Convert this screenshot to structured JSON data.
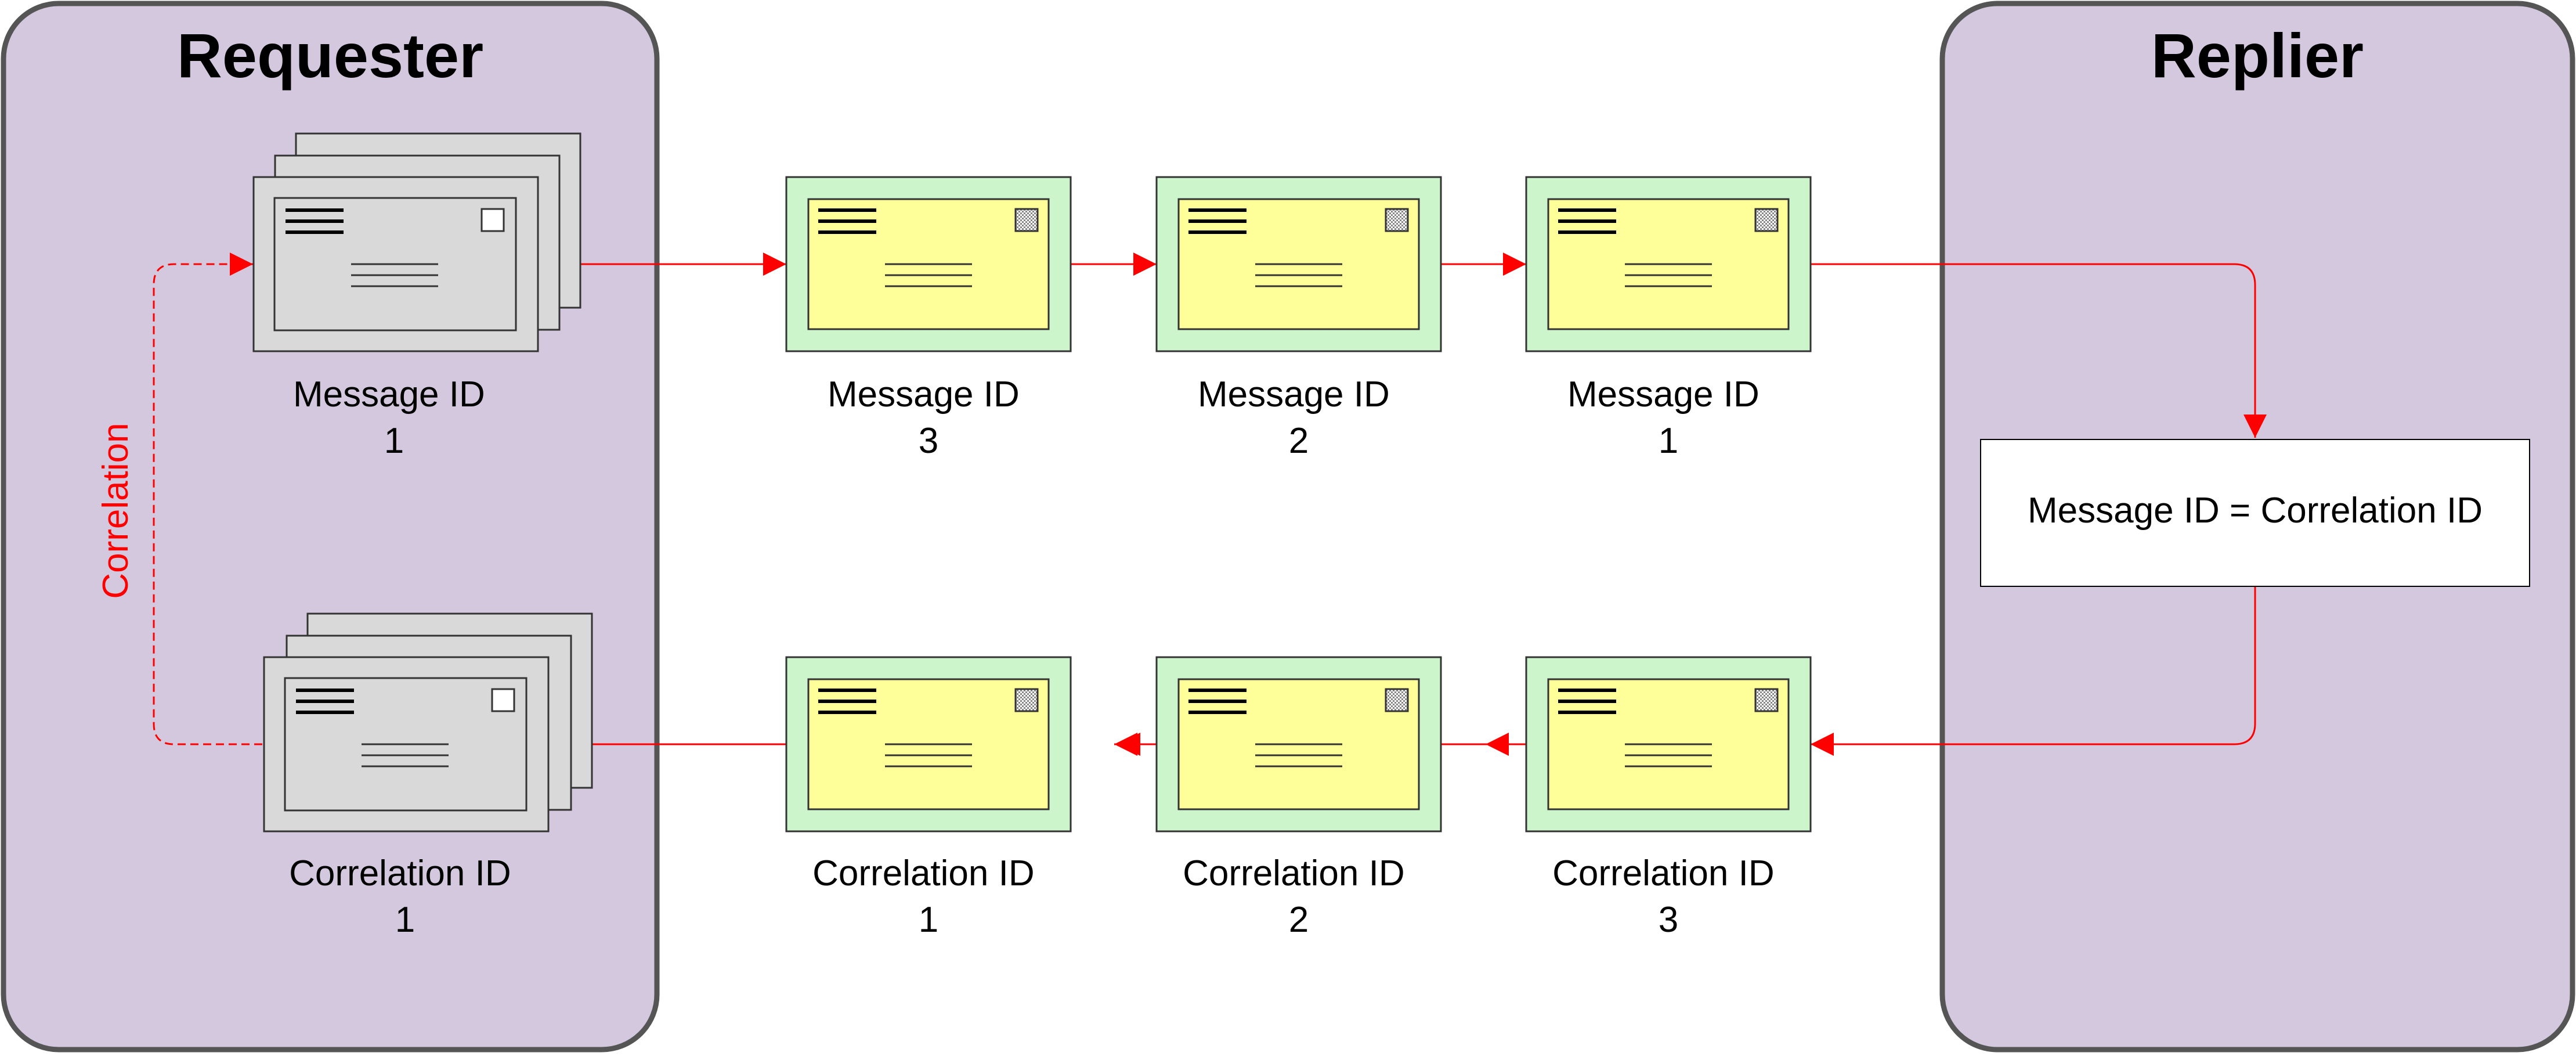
{
  "requester": {
    "title": "Requester"
  },
  "replier": {
    "title": "Replier"
  },
  "correlation_label": "Correlation",
  "transform_box": {
    "label": "Message ID = Correlation ID"
  },
  "requester_messages": {
    "request": {
      "line1": "Message ID",
      "line2": "1"
    },
    "reply": {
      "line1": "Correlation ID",
      "line2": "1"
    }
  },
  "request_queue": [
    {
      "line1": "Message ID",
      "line2": "3"
    },
    {
      "line1": "Message ID",
      "line2": "2"
    },
    {
      "line1": "Message ID",
      "line2": "1"
    }
  ],
  "reply_queue": [
    {
      "line1": "Correlation ID",
      "line2": "1"
    },
    {
      "line1": "Correlation ID",
      "line2": "2"
    },
    {
      "line1": "Correlation ID",
      "line2": "3"
    }
  ],
  "colors": {
    "panel_fill": "#d3c8dd",
    "panel_stroke": "#555555",
    "arrow": "#ff0000",
    "queue_frame": "#ccf5cc",
    "queue_card": "#ffff99",
    "stack_card": "#d9d9d9"
  }
}
